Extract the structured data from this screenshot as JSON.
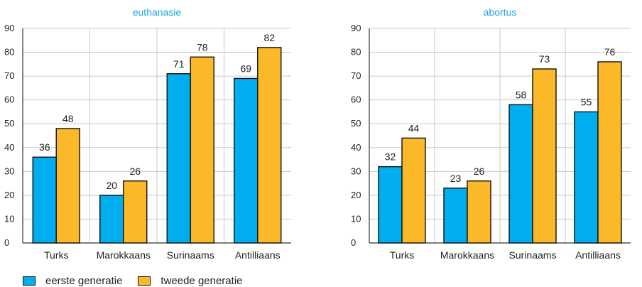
{
  "chart_data": [
    {
      "type": "bar",
      "title": "euthanasie",
      "categories": [
        "Turks",
        "Marokkaans",
        "Surinaams",
        "Antilliaans"
      ],
      "series": [
        {
          "name": "eerste generatie",
          "values": [
            36,
            20,
            71,
            69
          ]
        },
        {
          "name": "tweede generatie",
          "values": [
            48,
            26,
            78,
            82
          ]
        }
      ],
      "y_ticks": [
        0,
        10,
        20,
        30,
        40,
        50,
        60,
        70,
        80,
        90
      ],
      "ylim": [
        0,
        90
      ],
      "grid": true,
      "data_labels": true
    },
    {
      "type": "bar",
      "title": "abortus",
      "categories": [
        "Turks",
        "Marokkaans",
        "Surinaams",
        "Antilliaans"
      ],
      "series": [
        {
          "name": "eerste generatie",
          "values": [
            32,
            23,
            58,
            55
          ]
        },
        {
          "name": "tweede generatie",
          "values": [
            44,
            26,
            73,
            76
          ]
        }
      ],
      "y_ticks": [
        0,
        10,
        20,
        30,
        40,
        50,
        60,
        70,
        80,
        90
      ],
      "ylim": [
        0,
        90
      ],
      "grid": true,
      "data_labels": true
    }
  ],
  "legend": {
    "placement": "bottom-left",
    "items": [
      {
        "label": "eerste generatie",
        "color": "#00aeef"
      },
      {
        "label": "tweede generatie",
        "color": "#fbb829"
      }
    ]
  },
  "colors": {
    "series1": "#00aeef",
    "series2": "#fbb829",
    "title": "#1aa6e0",
    "grid": "#c8c8c8",
    "axis": "#333333",
    "bar_outline": "#111111"
  }
}
